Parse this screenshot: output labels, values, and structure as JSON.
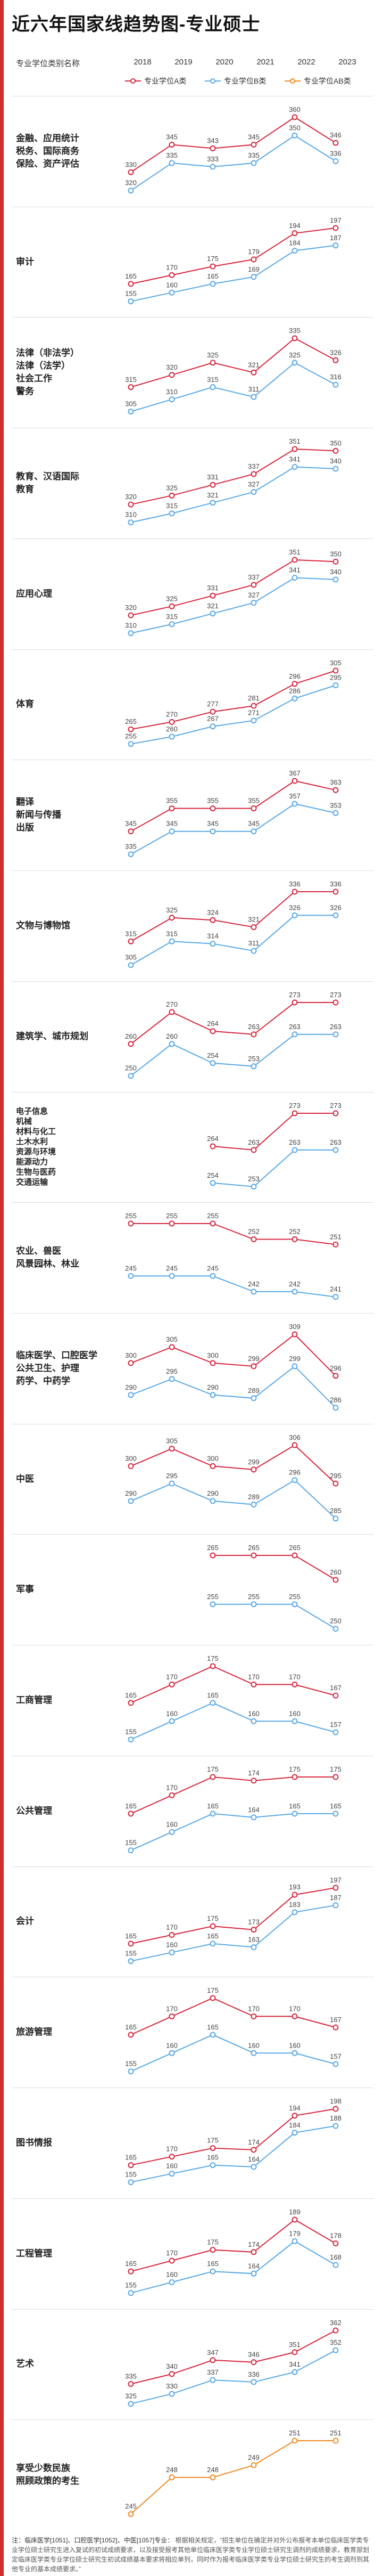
{
  "title": "近六年国家线趋势图-专业硕士",
  "header": {
    "category_label": "专业学位类别名称",
    "years": [
      "2018",
      "2019",
      "2020",
      "2021",
      "2022",
      "2023"
    ]
  },
  "legend": {
    "a": "专业学位A类",
    "b": "专业学位B类",
    "ab": "专业学位AB类"
  },
  "colors": {
    "a": "#d7263d",
    "b": "#5aa9e6",
    "ab": "#f08a24"
  },
  "chart_data": {
    "type": "line",
    "x": [
      "2018",
      "2019",
      "2020",
      "2021",
      "2022",
      "2023"
    ],
    "sections": [
      {
        "name": "金融、应用统计\n税务、国际商务\n保险、资产评估",
        "A": [
          330,
          345,
          343,
          345,
          360,
          346
        ],
        "B": [
          320,
          335,
          333,
          335,
          350,
          336
        ]
      },
      {
        "name": "审计",
        "A": [
          165,
          170,
          175,
          179,
          194,
          197
        ],
        "B": [
          155,
          160,
          165,
          169,
          184,
          187
        ]
      },
      {
        "name": "法律（非法学）\n法律（法学）\n社会工作\n警务",
        "A": [
          315,
          320,
          325,
          321,
          335,
          326
        ],
        "B": [
          305,
          310,
          315,
          311,
          325,
          316
        ]
      },
      {
        "name": "教育、汉语国际\n教育",
        "A": [
          320,
          325,
          331,
          337,
          351,
          350
        ],
        "B": [
          310,
          315,
          321,
          327,
          341,
          340
        ]
      },
      {
        "name": "应用心理",
        "A": [
          320,
          325,
          331,
          337,
          351,
          350
        ],
        "B": [
          310,
          315,
          321,
          327,
          341,
          340
        ]
      },
      {
        "name": "体育",
        "A": [
          265,
          270,
          277,
          281,
          296,
          305
        ],
        "B": [
          255,
          260,
          267,
          271,
          286,
          295
        ]
      },
      {
        "name": "翻译\n新闻与传播\n出版",
        "A": [
          345,
          355,
          355,
          355,
          367,
          363
        ],
        "B": [
          335,
          345,
          345,
          345,
          357,
          353
        ]
      },
      {
        "name": "文物与博物馆",
        "A": [
          315,
          325,
          324,
          321,
          336,
          336
        ],
        "B": [
          305,
          315,
          314,
          311,
          326,
          326
        ]
      },
      {
        "name": "建筑学、城市规划",
        "A": [
          260,
          270,
          264,
          263,
          273,
          273
        ],
        "B": [
          250,
          260,
          254,
          253,
          263,
          263
        ]
      },
      {
        "name": "电子信息\n机械\n材料与化工\n土木水利\n资源与环境\n能源动力\n生物与医药\n交通运输",
        "A": [
          null,
          null,
          264,
          263,
          273,
          273
        ],
        "B": [
          null,
          null,
          254,
          253,
          263,
          263
        ]
      },
      {
        "name": "农业、兽医\n风景园林、林业",
        "A": [
          255,
          255,
          255,
          252,
          252,
          251
        ],
        "B": [
          245,
          245,
          245,
          242,
          242,
          241
        ]
      },
      {
        "name": "临床医学、口腔医学\n公共卫生、护理\n药学、中药学",
        "A": [
          300,
          305,
          300,
          299,
          309,
          296
        ],
        "B": [
          290,
          295,
          290,
          289,
          299,
          286
        ]
      },
      {
        "name": "中医",
        "A": [
          300,
          305,
          300,
          299,
          306,
          295
        ],
        "B": [
          290,
          295,
          290,
          289,
          296,
          285
        ]
      },
      {
        "name": "军事",
        "A": [
          null,
          null,
          265,
          265,
          265,
          260
        ],
        "B": [
          null,
          null,
          255,
          255,
          255,
          250
        ]
      },
      {
        "name": "工商管理",
        "A": [
          165,
          170,
          175,
          170,
          170,
          167
        ],
        "B": [
          155,
          160,
          165,
          160,
          160,
          157
        ]
      },
      {
        "name": "公共管理",
        "A": [
          165,
          170,
          175,
          174,
          175,
          175
        ],
        "B": [
          155,
          160,
          165,
          164,
          165,
          165
        ]
      },
      {
        "name": "会计",
        "A": [
          165,
          170,
          175,
          173,
          193,
          197
        ],
        "B": [
          155,
          160,
          165,
          163,
          183,
          187
        ]
      },
      {
        "name": "旅游管理",
        "A": [
          165,
          170,
          175,
          170,
          170,
          167
        ],
        "B": [
          155,
          160,
          165,
          160,
          160,
          157
        ]
      },
      {
        "name": "图书情报",
        "A": [
          165,
          170,
          175,
          174,
          194,
          198
        ],
        "B": [
          155,
          160,
          165,
          164,
          184,
          188
        ]
      },
      {
        "name": "工程管理",
        "A": [
          165,
          170,
          175,
          174,
          189,
          178
        ],
        "B": [
          155,
          160,
          165,
          164,
          179,
          168
        ]
      },
      {
        "name": "艺术",
        "A": [
          335,
          340,
          347,
          346,
          351,
          362
        ],
        "B": [
          325,
          330,
          337,
          336,
          341,
          352
        ]
      },
      {
        "name": "享受少数民族\n照顾政策的考生",
        "AB": [
          245,
          248,
          248,
          249,
          251,
          251
        ]
      }
    ]
  },
  "note": {
    "lead": "注：临床医学[1051]、口腔医学[1052]、中医[1057]专业：",
    "text": "根据相关规定，“招生单位在确定并对外公布报考本单位临床医学类专业学位硕士研究生进入复试的初试成绩要求，以及接受报考其他单位临床医学类专业学位硕士研究生调剂的成绩要求，教育部划定临床医学类专业学位硕士研究生初试成绩基本要求将相应单列，同时作为报考临床医学类专业学位硕士研究生的考生调剂到其他专业的基本成绩要求。”"
  }
}
